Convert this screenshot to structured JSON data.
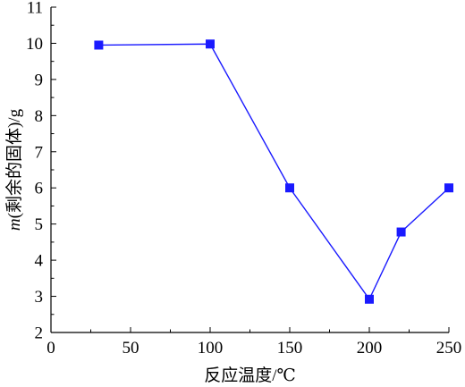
{
  "chart_data": {
    "type": "line",
    "title": "",
    "xlabel": "反应温度/℃",
    "ylabel_italic": "m",
    "ylabel_rest": "(剩余的固体)/g",
    "xlim": [
      0,
      250
    ],
    "ylim": [
      2,
      11
    ],
    "xticks": [
      0,
      50,
      100,
      150,
      200,
      250
    ],
    "yticks": [
      2,
      3,
      4,
      5,
      6,
      7,
      8,
      9,
      10,
      11
    ],
    "grid": false,
    "series": [
      {
        "x": [
          30,
          100,
          150,
          200,
          220,
          250
        ],
        "y": [
          9.95,
          9.98,
          6.0,
          2.92,
          4.78,
          6.0
        ],
        "color": "#1a1aff",
        "marker": "square"
      }
    ]
  }
}
